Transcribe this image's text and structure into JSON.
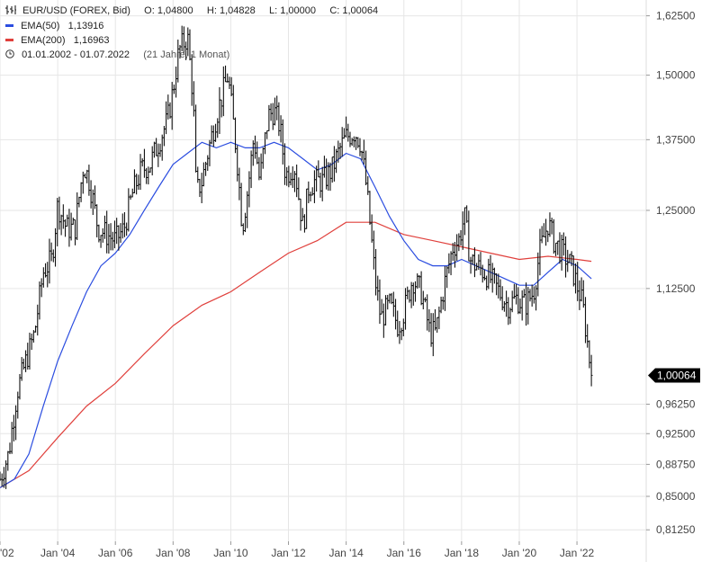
{
  "header": {
    "instrument": "EUR/USD (FOREX, Bid)",
    "ohlc": {
      "o": "O: 1,04800",
      "h": "H: 1,04828",
      "l": "L: 1,00000",
      "c": "C: 1,00064"
    },
    "ema50": {
      "label": "EMA(50)",
      "value": "1,13916",
      "color": "#2b4de0"
    },
    "ema200": {
      "label": "EMA(200)",
      "value": "1,16963",
      "color": "#e0403c"
    },
    "range": {
      "dates": "01.01.2002 - 01.07.2022",
      "span": "(21 Jahre, 1 Monat)"
    },
    "icons": {
      "ohlc": "ohlc-bars-icon",
      "clock": "clock-icon"
    }
  },
  "colors": {
    "price": "#111111",
    "grid": "#e6e6e6",
    "axis_text": "#444444",
    "last_badge": "#000000",
    "last_badge_text": "#ffffff"
  },
  "chart_data": {
    "type": "line",
    "title": "EUR/USD (FOREX, Bid)",
    "y_scale": "log",
    "ylim": [
      0.8,
      1.66
    ],
    "y_ticks": [
      1.625,
      1.5,
      1.375,
      1.25,
      1.125,
      0.9625,
      0.925,
      0.8875,
      0.85,
      0.8125
    ],
    "y_tick_labels": [
      "1,62500",
      "1,50000",
      "1,37500",
      "1,25000",
      "1,12500",
      "0,96250",
      "0,92500",
      "0,88750",
      "0,85000",
      "0,81250"
    ],
    "x_ticks": [
      2002,
      2004,
      2006,
      2008,
      2010,
      2012,
      2014,
      2016,
      2018,
      2020,
      2022
    ],
    "x_tick_labels": [
      "'02",
      "Jan '04",
      "Jan '06",
      "Jan '08",
      "Jan '10",
      "Jan '12",
      "Jan '14",
      "Jan '16",
      "Jan '18",
      "Jan '20",
      "Jan '22"
    ],
    "xlim": [
      2002.0,
      2024.4
    ],
    "last_value": 1.00064,
    "last_label": "1,00064",
    "grid": true,
    "series": [
      {
        "name": "EUR/USD",
        "style": "ohlc",
        "x": [
          2002.0,
          2002.3,
          2002.6,
          2002.9,
          2003.2,
          2003.5,
          2003.8,
          2004.0,
          2004.3,
          2004.6,
          2004.9,
          2005.1,
          2005.4,
          2005.7,
          2006.0,
          2006.3,
          2006.6,
          2006.9,
          2007.2,
          2007.5,
          2007.8,
          2008.0,
          2008.2,
          2008.5,
          2008.7,
          2008.8,
          2009.0,
          2009.2,
          2009.5,
          2009.9,
          2010.2,
          2010.4,
          2010.6,
          2010.8,
          2011.0,
          2011.3,
          2011.5,
          2011.7,
          2011.9,
          2012.2,
          2012.5,
          2012.7,
          2012.9,
          2013.2,
          2013.5,
          2013.8,
          2014.0,
          2014.3,
          2014.5,
          2014.7,
          2015.0,
          2015.2,
          2015.5,
          2015.8,
          2016.0,
          2016.3,
          2016.6,
          2016.9,
          2017.1,
          2017.4,
          2017.7,
          2017.9,
          2018.1,
          2018.3,
          2018.5,
          2018.8,
          2019.0,
          2019.3,
          2019.6,
          2019.9,
          2020.2,
          2020.5,
          2020.7,
          2021.0,
          2021.2,
          2021.5,
          2021.8,
          2022.0,
          2022.2,
          2022.35,
          2022.5
        ],
        "values": [
          0.87,
          0.9,
          0.98,
          1.02,
          1.06,
          1.15,
          1.17,
          1.26,
          1.22,
          1.22,
          1.33,
          1.3,
          1.22,
          1.21,
          1.2,
          1.22,
          1.28,
          1.32,
          1.33,
          1.37,
          1.41,
          1.47,
          1.55,
          1.58,
          1.45,
          1.28,
          1.3,
          1.35,
          1.42,
          1.5,
          1.35,
          1.22,
          1.29,
          1.38,
          1.3,
          1.42,
          1.43,
          1.4,
          1.31,
          1.33,
          1.22,
          1.29,
          1.3,
          1.3,
          1.32,
          1.36,
          1.38,
          1.39,
          1.37,
          1.29,
          1.14,
          1.08,
          1.1,
          1.07,
          1.09,
          1.14,
          1.12,
          1.06,
          1.06,
          1.13,
          1.19,
          1.2,
          1.24,
          1.17,
          1.16,
          1.15,
          1.14,
          1.12,
          1.1,
          1.11,
          1.1,
          1.12,
          1.18,
          1.23,
          1.2,
          1.18,
          1.16,
          1.13,
          1.1,
          1.05,
          1.0
        ]
      },
      {
        "name": "EMA(50)",
        "x": [
          2002.0,
          2002.5,
          2003.0,
          2003.5,
          2004.0,
          2004.5,
          2005.0,
          2005.5,
          2006.0,
          2006.5,
          2007.0,
          2007.5,
          2008.0,
          2008.5,
          2009.0,
          2009.5,
          2010.0,
          2010.5,
          2011.0,
          2011.5,
          2012.0,
          2012.5,
          2013.0,
          2013.5,
          2014.0,
          2014.5,
          2015.0,
          2015.5,
          2016.0,
          2016.5,
          2017.0,
          2017.5,
          2018.0,
          2018.5,
          2019.0,
          2019.5,
          2020.0,
          2020.5,
          2021.0,
          2021.5,
          2022.0,
          2022.5
        ],
        "values": [
          0.86,
          0.87,
          0.9,
          0.96,
          1.02,
          1.07,
          1.12,
          1.16,
          1.18,
          1.21,
          1.25,
          1.29,
          1.33,
          1.35,
          1.37,
          1.36,
          1.37,
          1.36,
          1.36,
          1.37,
          1.36,
          1.34,
          1.32,
          1.33,
          1.35,
          1.34,
          1.29,
          1.24,
          1.2,
          1.17,
          1.16,
          1.16,
          1.17,
          1.16,
          1.15,
          1.14,
          1.13,
          1.13,
          1.15,
          1.17,
          1.16,
          1.14
        ]
      },
      {
        "name": "EMA(200)",
        "x": [
          2002.0,
          2003.0,
          2004.0,
          2005.0,
          2006.0,
          2007.0,
          2008.0,
          2009.0,
          2010.0,
          2011.0,
          2012.0,
          2013.0,
          2014.0,
          2015.0,
          2016.0,
          2017.0,
          2018.0,
          2019.0,
          2020.0,
          2021.0,
          2022.0,
          2022.5
        ],
        "values": [
          0.86,
          0.88,
          0.92,
          0.96,
          0.99,
          1.03,
          1.07,
          1.1,
          1.12,
          1.15,
          1.18,
          1.2,
          1.23,
          1.23,
          1.21,
          1.2,
          1.19,
          1.18,
          1.17,
          1.175,
          1.17,
          1.167
        ]
      }
    ]
  }
}
